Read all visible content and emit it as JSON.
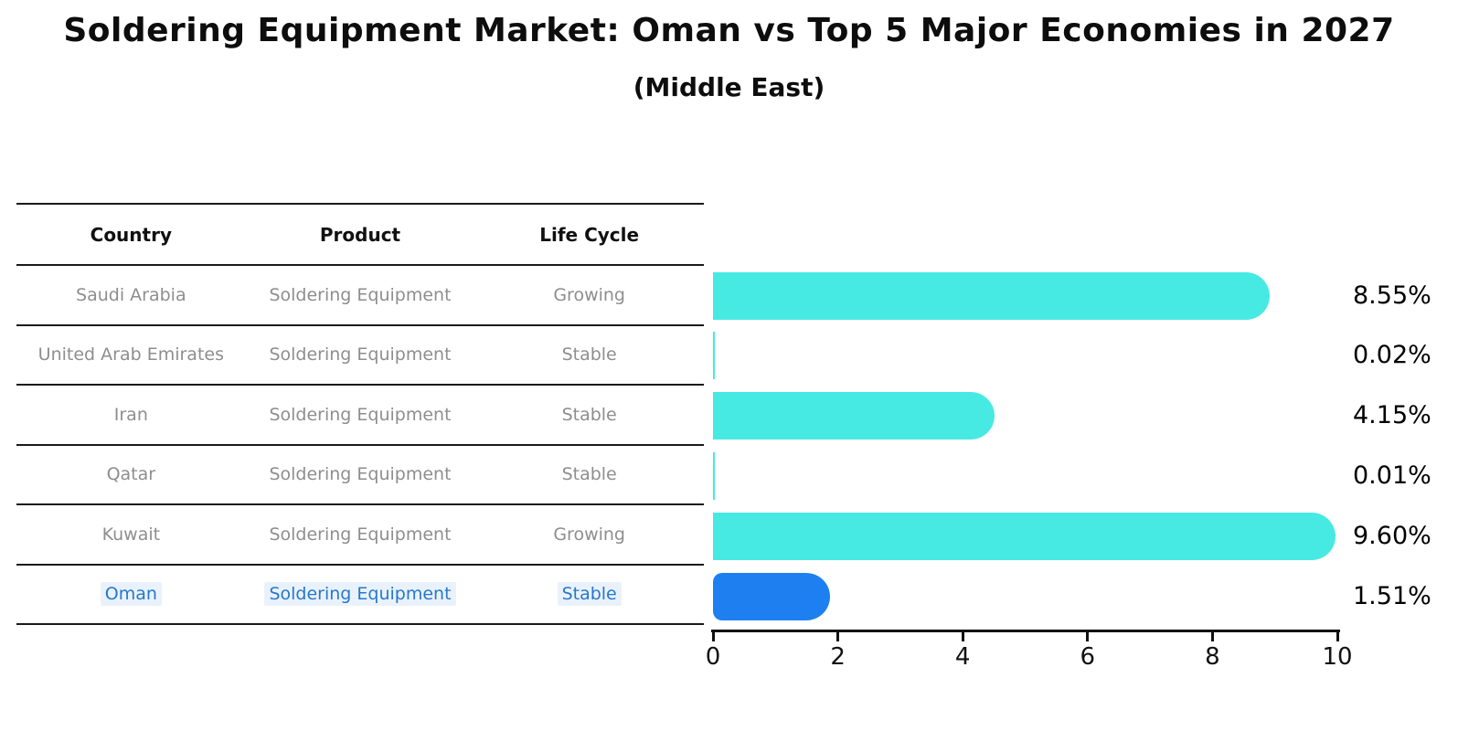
{
  "title": "Soldering Equipment Market: Oman vs Top 5 Major Economies in 2027",
  "subtitle": "(Middle East)",
  "table": {
    "headers": [
      "Country",
      "Product",
      "Life Cycle"
    ],
    "rows": [
      {
        "country": "Saudi Arabia",
        "product": "Soldering Equipment",
        "life_cycle": "Growing"
      },
      {
        "country": "United Arab Emirates",
        "product": "Soldering Equipment",
        "life_cycle": "Stable"
      },
      {
        "country": "Iran",
        "product": "Soldering Equipment",
        "life_cycle": "Stable"
      },
      {
        "country": "Qatar",
        "product": "Soldering Equipment",
        "life_cycle": "Stable"
      },
      {
        "country": "Kuwait",
        "product": "Soldering Equipment",
        "life_cycle": "Growing"
      },
      {
        "country": "Oman",
        "product": "Soldering Equipment",
        "life_cycle": "Stable"
      }
    ],
    "highlight_row": "Oman"
  },
  "chart_data": {
    "type": "bar",
    "orientation": "horizontal",
    "categories": [
      "Saudi Arabia",
      "United Arab Emirates",
      "Iran",
      "Qatar",
      "Kuwait",
      "Oman"
    ],
    "values": [
      8.55,
      0.02,
      4.15,
      0.01,
      9.6,
      1.51
    ],
    "value_labels": [
      "8.55%",
      "0.02%",
      "4.15%",
      "0.01%",
      "9.60%",
      "1.51%"
    ],
    "x_ticks": [
      "0",
      "2",
      "4",
      "6",
      "8",
      "10"
    ],
    "xlim": [
      0,
      10
    ],
    "grid": false,
    "legend": false,
    "bar_color": "#47eae2",
    "highlight_color": "#1e80f0",
    "highlight_index": 5
  },
  "colors": {
    "title_text": "#0d0d0d",
    "table_text": "#8e8e8e",
    "table_line": "#1a1a1a",
    "highlight_text": "#2878c8",
    "highlight_text_bg": "#e9f2fc",
    "axis": "#111111"
  }
}
